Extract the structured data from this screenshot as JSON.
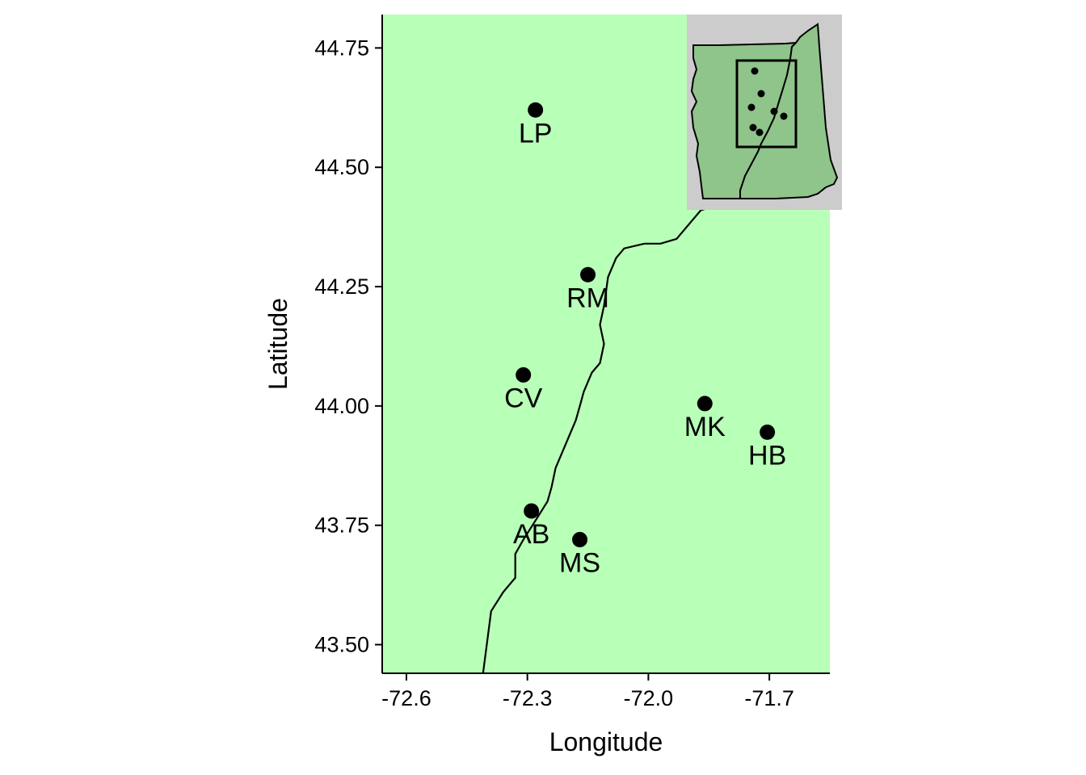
{
  "chart_data": {
    "type": "scatter",
    "xlabel": "Longitude",
    "ylabel": "Latitude",
    "xlim": [
      -72.66,
      -71.55
    ],
    "ylim": [
      43.44,
      44.82
    ],
    "x_ticks": [
      -72.6,
      -72.3,
      -72.0,
      -71.7
    ],
    "x_tick_labels": [
      "-72.6",
      "-72.3",
      "-72.0",
      "-71.7"
    ],
    "y_ticks": [
      43.5,
      43.75,
      44.0,
      44.25,
      44.5,
      44.75
    ],
    "y_tick_labels": [
      "43.50",
      "43.75",
      "44.00",
      "44.25",
      "44.50",
      "44.75"
    ],
    "background_color": "#b8ffb8",
    "points": [
      {
        "label": "LP",
        "x": -72.28,
        "y": 44.62
      },
      {
        "label": "RM",
        "x": -72.15,
        "y": 44.275
      },
      {
        "label": "CV",
        "x": -72.31,
        "y": 44.065
      },
      {
        "label": "MK",
        "x": -71.86,
        "y": 44.005
      },
      {
        "label": "HB",
        "x": -71.705,
        "y": 43.945
      },
      {
        "label": "AB",
        "x": -72.29,
        "y": 43.78
      },
      {
        "label": "MS",
        "x": -72.17,
        "y": 43.72
      }
    ],
    "state_border_line": [
      [
        -72.41,
        43.44
      ],
      [
        -72.39,
        43.57
      ],
      [
        -72.36,
        43.61
      ],
      [
        -72.33,
        43.64
      ],
      [
        -72.33,
        43.69
      ],
      [
        -72.31,
        43.72
      ],
      [
        -72.28,
        43.76
      ],
      [
        -72.25,
        43.8
      ],
      [
        -72.24,
        43.83
      ],
      [
        -72.23,
        43.87
      ],
      [
        -72.21,
        43.91
      ],
      [
        -72.18,
        43.97
      ],
      [
        -72.17,
        44.0
      ],
      [
        -72.16,
        44.03
      ],
      [
        -72.14,
        44.07
      ],
      [
        -72.12,
        44.09
      ],
      [
        -72.11,
        44.13
      ],
      [
        -72.12,
        44.17
      ],
      [
        -72.11,
        44.21
      ],
      [
        -72.1,
        44.27
      ],
      [
        -72.08,
        44.31
      ],
      [
        -72.06,
        44.33
      ],
      [
        -72.01,
        44.34
      ],
      [
        -71.97,
        44.34
      ],
      [
        -71.93,
        44.35
      ],
      [
        -71.9,
        44.38
      ],
      [
        -71.87,
        44.41
      ],
      [
        -71.83,
        44.42
      ]
    ],
    "inset": {
      "background_color": "#cccccc",
      "land_color": "#8fc48a",
      "vt_outline": [
        [
          8,
          38
        ],
        [
          40,
          38
        ],
        [
          80,
          37
        ],
        [
          122,
          36
        ],
        [
          135,
          35
        ],
        [
          130,
          40
        ],
        [
          128,
          55
        ],
        [
          124,
          75
        ],
        [
          118,
          95
        ],
        [
          114,
          108
        ],
        [
          108,
          128
        ],
        [
          100,
          145
        ],
        [
          92,
          160
        ],
        [
          88,
          170
        ],
        [
          80,
          185
        ],
        [
          72,
          200
        ],
        [
          66,
          218
        ],
        [
          68,
          228
        ],
        [
          20,
          228
        ],
        [
          18,
          212
        ],
        [
          16,
          195
        ],
        [
          12,
          175
        ],
        [
          14,
          160
        ],
        [
          8,
          140
        ],
        [
          6,
          120
        ],
        [
          12,
          108
        ],
        [
          6,
          95
        ],
        [
          8,
          80
        ],
        [
          12,
          68
        ],
        [
          8,
          54
        ]
      ],
      "nh_outline": [
        [
          135,
          35
        ],
        [
          140,
          28
        ],
        [
          150,
          20
        ],
        [
          162,
          12
        ],
        [
          164,
          40
        ],
        [
          168,
          90
        ],
        [
          172,
          140
        ],
        [
          178,
          180
        ],
        [
          186,
          202
        ],
        [
          182,
          210
        ],
        [
          172,
          214
        ],
        [
          162,
          222
        ],
        [
          150,
          226
        ],
        [
          110,
          228
        ],
        [
          66,
          228
        ],
        [
          66,
          218
        ],
        [
          72,
          200
        ],
        [
          80,
          185
        ],
        [
          88,
          170
        ],
        [
          92,
          160
        ],
        [
          100,
          145
        ],
        [
          108,
          128
        ],
        [
          114,
          108
        ],
        [
          118,
          95
        ],
        [
          124,
          75
        ],
        [
          128,
          55
        ],
        [
          130,
          40
        ]
      ],
      "box": {
        "x": 62,
        "y": 57,
        "w": 73,
        "h": 107
      },
      "dots": [
        [
          84,
          70
        ],
        [
          92,
          98
        ],
        [
          80,
          115
        ],
        [
          108,
          120
        ],
        [
          120,
          126
        ],
        [
          82,
          140
        ],
        [
          90,
          146
        ]
      ]
    }
  }
}
